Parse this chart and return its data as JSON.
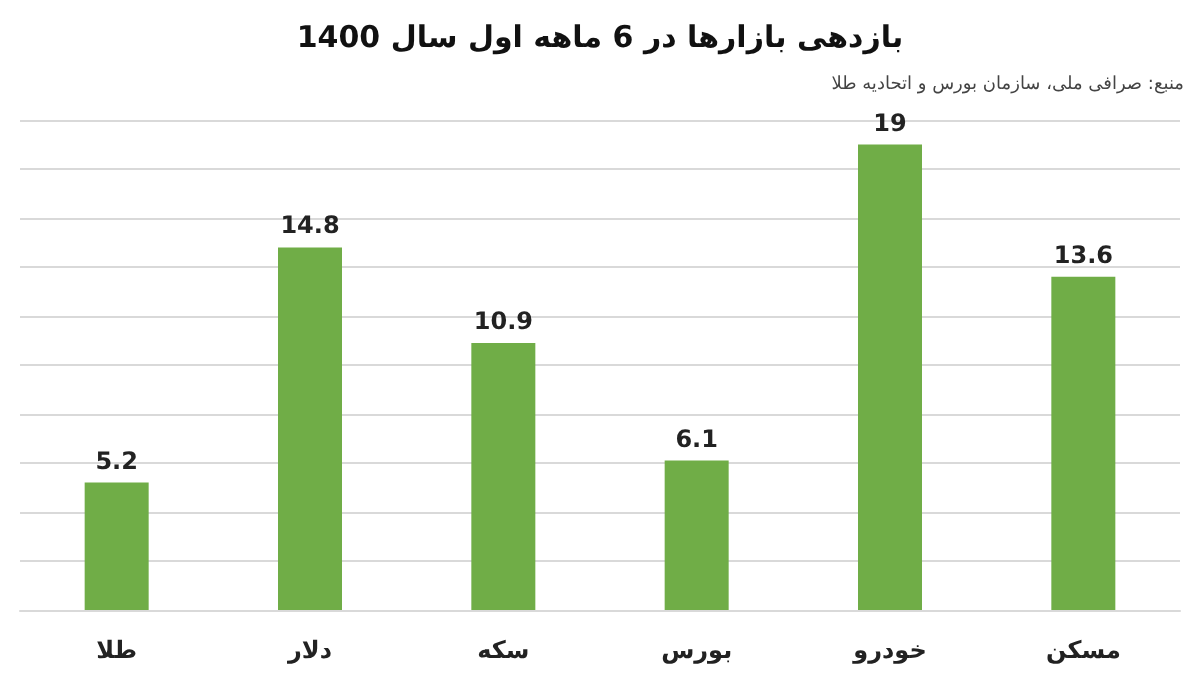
{
  "chart_data": {
    "type": "bar",
    "title": "بازدهی بازارها در 6 ماهه اول سال 1400",
    "annotations": [
      "منبع: صرافی ملی، سازمان بورس و اتحادیه طلا"
    ],
    "categories": [
      "طلا",
      "دلار",
      "سکه",
      "بورس",
      "خودرو",
      "مسکن"
    ],
    "values": [
      5.2,
      14.8,
      10.9,
      6.1,
      19,
      13.6
    ],
    "color": "#70ad47",
    "ylim": [
      0,
      20
    ],
    "yticks": [
      {
        "value": 0,
        "label": null
      },
      {
        "value": 2,
        "label": null
      },
      {
        "value": 4,
        "label": null
      },
      {
        "value": 6,
        "label": null
      },
      {
        "value": 8,
        "label": null
      },
      {
        "value": 10,
        "label": null
      },
      {
        "value": 12,
        "label": null
      },
      {
        "value": 14,
        "label": null
      },
      {
        "value": 16,
        "label": null
      },
      {
        "value": 18,
        "label": null
      },
      {
        "value": 20,
        "label": null
      }
    ],
    "tick_labels": "x",
    "grid": "y",
    "data_labels": true
  }
}
